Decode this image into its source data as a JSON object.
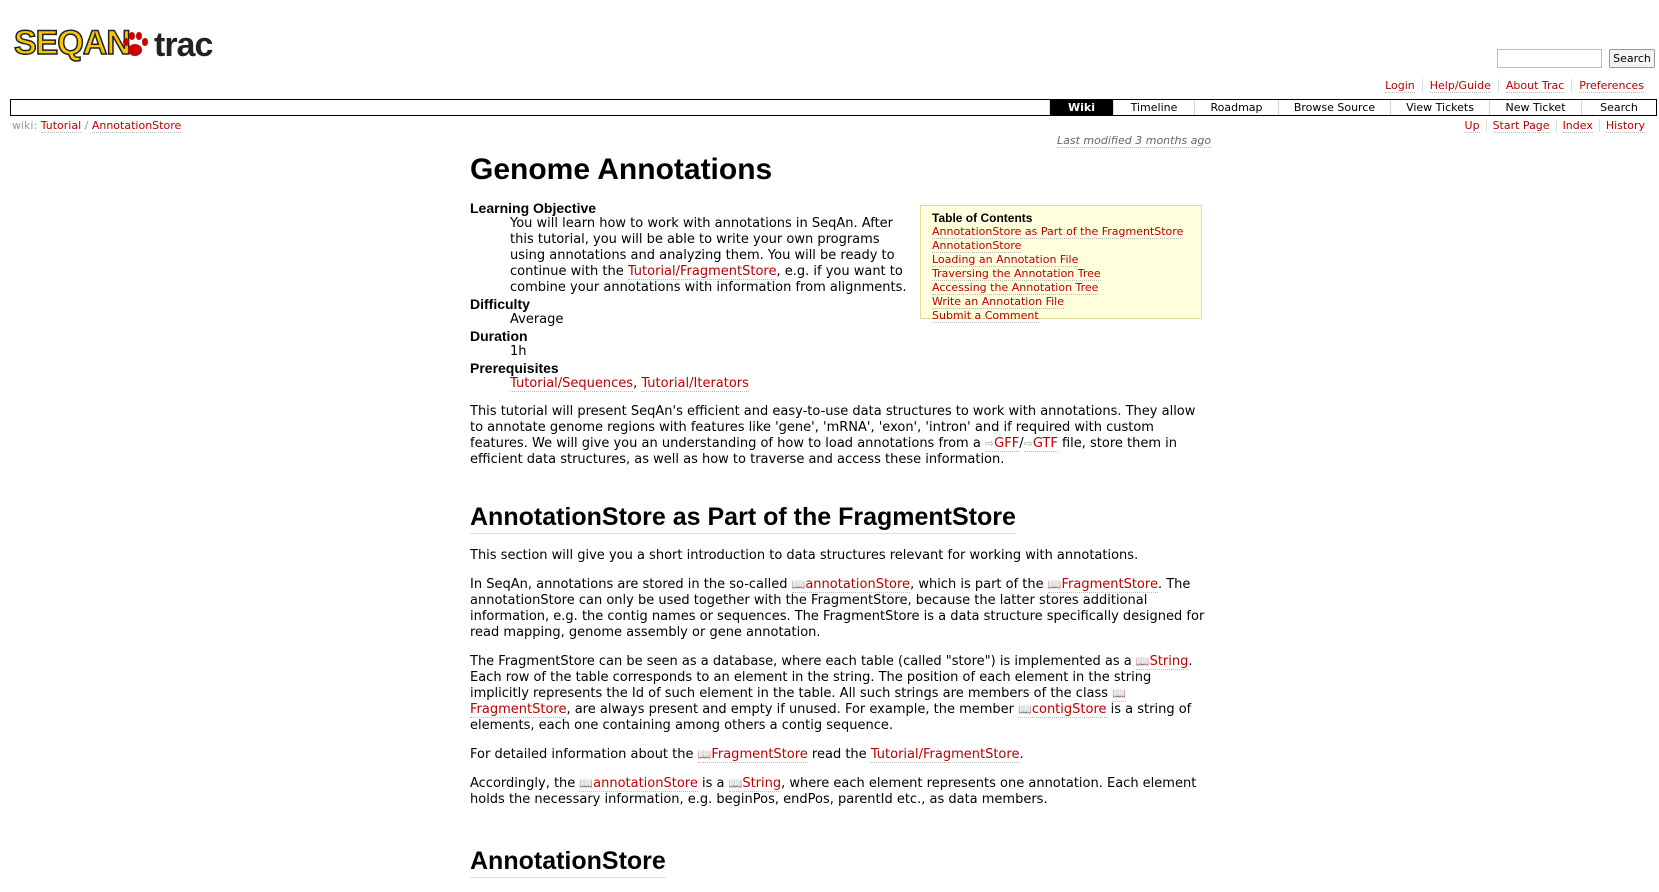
{
  "header": {
    "logo_left": "SEQAN",
    "logo_right": "trac",
    "search_button": "Search",
    "search_value": ""
  },
  "metanav": [
    "Login",
    "Help/Guide",
    "About Trac",
    "Preferences"
  ],
  "mainnav": [
    "Wiki",
    "Timeline",
    "Roadmap",
    "Browse Source",
    "View Tickets",
    "New Ticket",
    "Search"
  ],
  "mainnav_active": "Wiki",
  "breadcrumb": {
    "prefix": "wiki:",
    "parts": [
      "Tutorial",
      "AnnotationStore"
    ],
    "sep": " / "
  },
  "ctxnav": [
    "Up",
    "Start Page",
    "Index",
    "History"
  ],
  "last_modified": "Last modified 3 months ago",
  "page_title": "Genome Annotations",
  "toc": {
    "title": "Table of Contents",
    "items": [
      "AnnotationStore as Part of the FragmentStore",
      "AnnotationStore",
      "Loading an Annotation File",
      "Traversing the Annotation Tree",
      "Accessing the Annotation Tree",
      "Write an Annotation File",
      "Submit a Comment"
    ]
  },
  "meta": {
    "learning_objective_label": "Learning Objective",
    "learning_objective_text_1": "You will learn how to work with annotations in SeqAn. After this tutorial, you will be able to write your own programs using annotations and analyzing them. You will be ready to continue with the ",
    "learning_objective_link": "Tutorial/FragmentStore",
    "learning_objective_text_2": ", e.g. if you want to combine your annotations with information from alignments.",
    "difficulty_label": "Difficulty",
    "difficulty_value": "Average",
    "duration_label": "Duration",
    "duration_value": "1h",
    "prerequisites_label": "Prerequisites",
    "prereq_1": "Tutorial/Sequences",
    "prereq_sep": ", ",
    "prereq_2": "Tutorial/Iterators"
  },
  "intro": {
    "t1": "This tutorial will present SeqAn's efficient and easy-to-use data structures to work with annotations. They allow to annotate genome regions with features like 'gene', 'mRNA', 'exon', 'intron' and if required with custom features. We will give you an understanding of how to load annotations from a ",
    "gff": "GFF",
    "slash": "/",
    "gtf": "GTF",
    "t2": " file, store them in efficient data structures, as well as how to traverse and access these information."
  },
  "section1": {
    "heading": "AnnotationStore as Part of the FragmentStore",
    "p1": "This section will give you a short introduction to data structures relevant for working with annotations.",
    "p2_a": "In SeqAn, annotations are stored in the so-called ",
    "p2_link1": "annotationStore",
    "p2_b": ", which is part of the ",
    "p2_link2": "FragmentStore",
    "p2_c": ". The annotationStore can only be used together with the FragmentStore, because the latter stores additional information, e.g. the contig names or sequences. The FragmentStore is a data structure specifically designed for read mapping, genome assembly or gene annotation.",
    "p3_a": "The FragmentStore can be seen as a database, where each table (called \"store\") is implemented as a ",
    "p3_link1": "String",
    "p3_b": ". Each row of the table corresponds to an element in the string. The position of each element in the string implicitly represents the Id of such element in the table. All such strings are members of the class ",
    "p3_link2": "FragmentStore",
    "p3_c": ", are always present and empty if unused. For example, the member ",
    "p3_link3": "contigStore",
    "p3_d": " is a string of elements, each one containing among others a contig sequence.",
    "p4_a": "For detailed information about the ",
    "p4_link1": "FragmentStore",
    "p4_b": " read the ",
    "p4_link2": "Tutorial/FragmentStore",
    "p4_c": ".",
    "p5_a": "Accordingly, the ",
    "p5_link1": "annotationStore",
    "p5_b": " is a ",
    "p5_link2": "String",
    "p5_c": ", where each element represents one annotation. Each element holds the necessary information, e.g. beginPos, endPos, parentId etc., as data members."
  },
  "section2": {
    "heading": "AnnotationStore"
  }
}
